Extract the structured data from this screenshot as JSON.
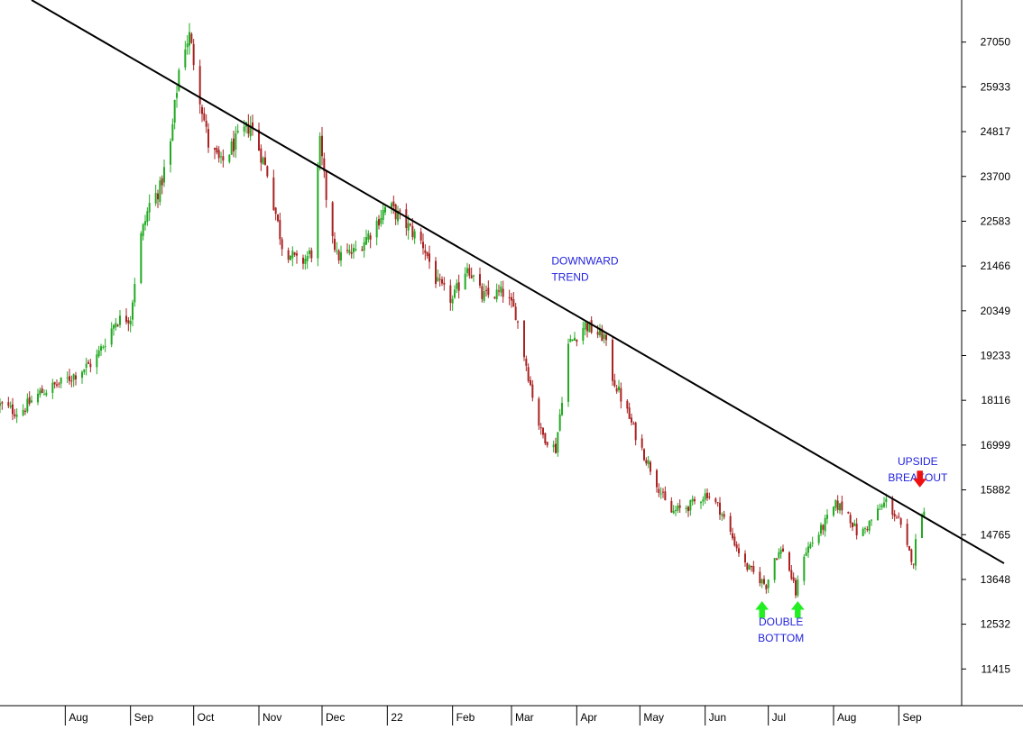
{
  "colors": {
    "up": "#22aa22",
    "down": "#aa2222",
    "trendline": "#000000",
    "annotation_text": "#2222dd",
    "double_bottom_arrow": "#22ee22",
    "breakout_arrow": "#ee1111",
    "axis": "#000000",
    "background": "#ffffff"
  },
  "chart_data": {
    "type": "candlestick",
    "title": "",
    "xlabel": "",
    "ylabel": "",
    "ylim": [
      10500,
      28100
    ],
    "x_range": [
      "2021-07-01",
      "2022-09-30"
    ],
    "y_ticks": [
      27050,
      25933,
      24817,
      23700,
      22583,
      21466,
      20349,
      19233,
      18116,
      16999,
      15882,
      14765,
      13648,
      12532,
      11415
    ],
    "x_ticks": [
      {
        "label": "Aug",
        "date": "2021-08-01"
      },
      {
        "label": "Sep",
        "date": "2021-09-01"
      },
      {
        "label": "Oct",
        "date": "2021-10-01"
      },
      {
        "label": "Nov",
        "date": "2021-11-01"
      },
      {
        "label": "Dec",
        "date": "2021-12-01"
      },
      {
        "label": "22",
        "date": "2022-01-01"
      },
      {
        "label": "Feb",
        "date": "2022-02-01"
      },
      {
        "label": "Mar",
        "date": "2022-03-01"
      },
      {
        "label": "Apr",
        "date": "2022-04-01"
      },
      {
        "label": "May",
        "date": "2022-05-01"
      },
      {
        "label": "Jun",
        "date": "2022-06-01"
      },
      {
        "label": "Jul",
        "date": "2022-07-01"
      },
      {
        "label": "Aug",
        "date": "2022-08-01"
      },
      {
        "label": "Sep",
        "date": "2022-09-01"
      }
    ],
    "close_waypoints": [
      [
        "2021-07-01",
        18000
      ],
      [
        "2021-07-10",
        17800
      ],
      [
        "2021-07-20",
        18300
      ],
      [
        "2021-08-01",
        18600
      ],
      [
        "2021-08-15",
        19100
      ],
      [
        "2021-08-25",
        20100
      ],
      [
        "2021-09-01",
        20200
      ],
      [
        "2021-09-05",
        22000
      ],
      [
        "2021-09-10",
        23000
      ],
      [
        "2021-09-15",
        23400
      ],
      [
        "2021-09-20",
        24500
      ],
      [
        "2021-09-25",
        26800
      ],
      [
        "2021-09-29",
        27200
      ],
      [
        "2021-10-03",
        26000
      ],
      [
        "2021-10-08",
        24500
      ],
      [
        "2021-10-14",
        24000
      ],
      [
        "2021-10-20",
        24500
      ],
      [
        "2021-10-28",
        25000
      ],
      [
        "2021-11-05",
        23800
      ],
      [
        "2021-11-12",
        22000
      ],
      [
        "2021-11-20",
        21500
      ],
      [
        "2021-11-26",
        21800
      ],
      [
        "2021-11-30",
        24500
      ],
      [
        "2021-12-03",
        23200
      ],
      [
        "2021-12-08",
        21700
      ],
      [
        "2021-12-16",
        21800
      ],
      [
        "2021-12-24",
        22300
      ],
      [
        "2022-01-01",
        23000
      ],
      [
        "2022-01-10",
        22500
      ],
      [
        "2022-01-18",
        22000
      ],
      [
        "2022-01-25",
        21000
      ],
      [
        "2022-02-01",
        20600
      ],
      [
        "2022-02-08",
        21500
      ],
      [
        "2022-02-15",
        20700
      ],
      [
        "2022-02-25",
        20800
      ],
      [
        "2022-03-03",
        20300
      ],
      [
        "2022-03-10",
        18500
      ],
      [
        "2022-03-15",
        17300
      ],
      [
        "2022-03-22",
        16900
      ],
      [
        "2022-03-28",
        19500
      ],
      [
        "2022-04-05",
        20000
      ],
      [
        "2022-04-10",
        19800
      ],
      [
        "2022-04-14",
        19700
      ],
      [
        "2022-04-18",
        18700
      ],
      [
        "2022-04-25",
        17800
      ],
      [
        "2022-05-01",
        17000
      ],
      [
        "2022-05-08",
        16200
      ],
      [
        "2022-05-15",
        15300
      ],
      [
        "2022-05-25",
        15500
      ],
      [
        "2022-06-02",
        15800
      ],
      [
        "2022-06-08",
        15400
      ],
      [
        "2022-06-13",
        14800
      ],
      [
        "2022-06-20",
        14000
      ],
      [
        "2022-06-26",
        13700
      ],
      [
        "2022-06-30",
        13500
      ],
      [
        "2022-07-04",
        14200
      ],
      [
        "2022-07-08",
        14400
      ],
      [
        "2022-07-12",
        13700
      ],
      [
        "2022-07-14",
        13300
      ],
      [
        "2022-07-18",
        14300
      ],
      [
        "2022-07-25",
        14800
      ],
      [
        "2022-08-02",
        15500
      ],
      [
        "2022-08-07",
        15400
      ],
      [
        "2022-08-13",
        14700
      ],
      [
        "2022-08-20",
        15200
      ],
      [
        "2022-08-26",
        15600
      ],
      [
        "2022-09-01",
        15100
      ],
      [
        "2022-09-05",
        14400
      ],
      [
        "2022-09-08",
        14100
      ],
      [
        "2022-09-11",
        15500
      ],
      [
        "2022-09-13",
        15300
      ]
    ],
    "trendline": {
      "start": [
        "2021-07-16",
        28100
      ],
      "end": [
        "2022-10-21",
        14050
      ]
    },
    "annotations": [
      {
        "lines": [
          "DOWNWARD",
          "TREND"
        ],
        "date": "2022-03-20",
        "value": 21500
      },
      {
        "lines": [
          "DOUBLE",
          "BOTTOM"
        ],
        "date": "2022-07-07",
        "value": 12500
      },
      {
        "lines": [
          "UPSIDE",
          "BREAKOUT"
        ],
        "date": "2022-09-10",
        "value": 16500
      }
    ],
    "markers": [
      {
        "kind": "double_bottom_arrow",
        "date": "2022-06-28",
        "value": 13100
      },
      {
        "kind": "double_bottom_arrow",
        "date": "2022-07-15",
        "value": 13100
      },
      {
        "kind": "breakout_arrow",
        "date": "2022-09-11",
        "value": 15950
      }
    ]
  }
}
